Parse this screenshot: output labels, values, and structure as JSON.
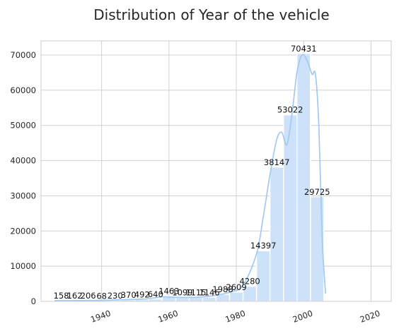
{
  "chart_data": {
    "type": "bar",
    "title": "Distribution of Year of the vehicle",
    "xlabel": "",
    "ylabel": "",
    "xlim": [
      1922,
      2026
    ],
    "ylim": [
      0,
      74000
    ],
    "x_ticks": [
      1940,
      1960,
      1980,
      2000,
      2020
    ],
    "x_tick_labels": [
      "1940",
      "1960",
      "1980",
      "2000",
      "2020"
    ],
    "y_ticks": [
      0,
      10000,
      20000,
      30000,
      40000,
      50000,
      60000,
      70000
    ],
    "y_tick_labels": [
      "0",
      "10000",
      "20000",
      "30000",
      "40000",
      "50000",
      "60000",
      "70000"
    ],
    "grid": true,
    "bins": [
      {
        "start": 1926.0,
        "end": 1930.0,
        "value": 158
      },
      {
        "start": 1930.0,
        "end": 1934.0,
        "value": 162
      },
      {
        "start": 1934.0,
        "end": 1938.0,
        "value": 206
      },
      {
        "start": 1938.0,
        "end": 1942.0,
        "value": 68
      },
      {
        "start": 1942.0,
        "end": 1946.0,
        "value": 230
      },
      {
        "start": 1946.0,
        "end": 1950.0,
        "value": 370
      },
      {
        "start": 1950.0,
        "end": 1954.0,
        "value": 492
      },
      {
        "start": 1954.0,
        "end": 1958.0,
        "value": 640
      },
      {
        "start": 1958.0,
        "end": 1962.0,
        "value": 1463
      },
      {
        "start": 1962.0,
        "end": 1966.0,
        "value": 1099
      },
      {
        "start": 1966.0,
        "end": 1970.0,
        "value": 1115
      },
      {
        "start": 1970.0,
        "end": 1974.0,
        "value": 1146
      },
      {
        "start": 1974.0,
        "end": 1978.0,
        "value": 1988
      },
      {
        "start": 1978.0,
        "end": 1982.0,
        "value": 2609
      },
      {
        "start": 1982.0,
        "end": 1986.0,
        "value": 4280
      },
      {
        "start": 1986.0,
        "end": 1990.0,
        "value": 14397
      },
      {
        "start": 1990.0,
        "end": 1994.0,
        "value": 38147
      },
      {
        "start": 1994.0,
        "end": 1998.0,
        "value": 53022
      },
      {
        "start": 1998.0,
        "end": 2002.0,
        "value": 70431
      },
      {
        "start": 2002.0,
        "end": 2006.0,
        "value": 29725
      }
    ],
    "data_labels": [
      "158",
      "162",
      "206",
      "68",
      "230",
      "370",
      "492",
      "640",
      "1463",
      "1099",
      "1115",
      "1146",
      "1988",
      "2609",
      "4280",
      "14397",
      "38147",
      "53022",
      "70431",
      "29725"
    ],
    "kde": {
      "x": [
        1926,
        1930,
        1934,
        1938,
        1942,
        1946,
        1950,
        1954,
        1958,
        1962,
        1966,
        1970,
        1974,
        1978,
        1982,
        1986,
        1988,
        1990,
        1992,
        1993.5,
        1995,
        1996.5,
        1998,
        1999.5,
        2001,
        2002.5,
        2003.5,
        2004.5,
        2005.5,
        2006.5
      ],
      "y": [
        250,
        200,
        250,
        250,
        350,
        450,
        550,
        750,
        1300,
        1150,
        1100,
        1250,
        1750,
        2600,
        4600,
        13500,
        24000,
        36000,
        46000,
        48000,
        44500,
        53000,
        65000,
        70000,
        68500,
        64500,
        64500,
        50000,
        18000,
        2200
      ]
    },
    "colors": {
      "bar_fill": "#cde2f8",
      "bar_edge": "#ffffff",
      "kde_line": "#a1c9f4",
      "grid": "#cccccc"
    }
  }
}
